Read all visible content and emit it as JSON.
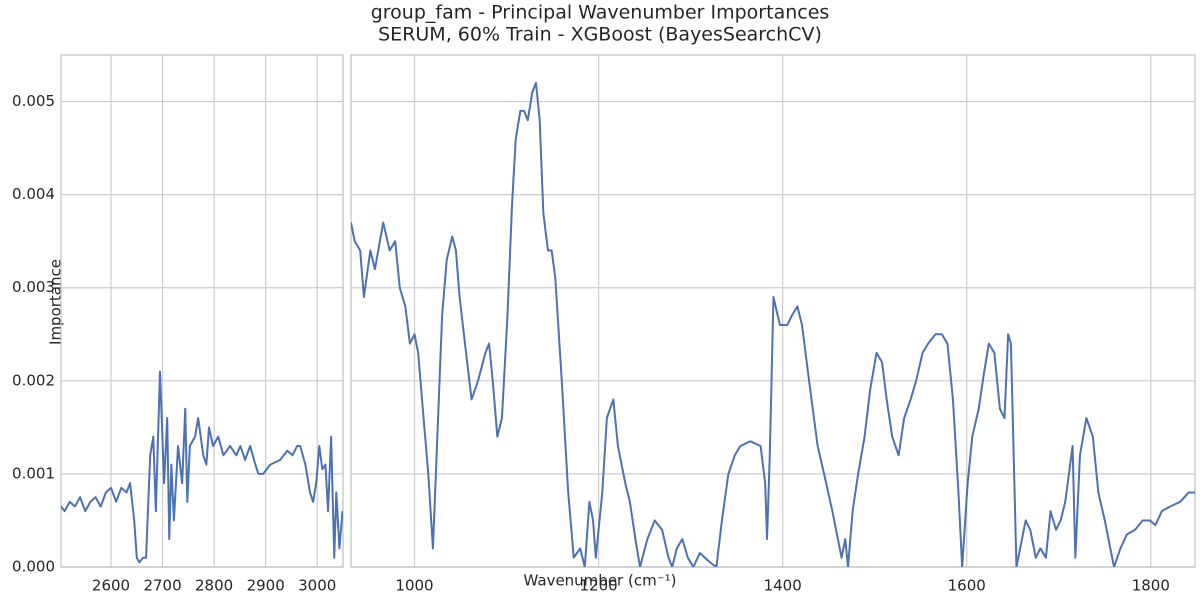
{
  "chart_data": [
    {
      "type": "line",
      "title": "group_fam - Principal Wavenumber Importances",
      "subtitle": "SERUM, 60% Train - XGBoost (BayesSearchCV)",
      "xlabel": "Wavenumber (cm⁻¹)",
      "ylabel": "Importance",
      "grid": true,
      "xlim": [
        2503,
        3050
      ],
      "xticks": [
        2600,
        2700,
        2800,
        2900,
        3000
      ],
      "ylim": [
        0,
        0.0055
      ],
      "yticks": [
        {
          "value": 0,
          "label": "0.000"
        },
        {
          "value": 0.001,
          "label": "0.001"
        },
        {
          "value": 0.002,
          "label": "0.002"
        },
        {
          "value": 0.003,
          "label": "0.003"
        },
        {
          "value": 0.004,
          "label": "0.004"
        },
        {
          "value": 0.005,
          "label": "0.005"
        }
      ],
      "x": [
        2503,
        2510,
        2520,
        2530,
        2540,
        2550,
        2560,
        2570,
        2580,
        2590,
        2600,
        2610,
        2620,
        2630,
        2637,
        2645,
        2650,
        2655,
        2662,
        2668,
        2676,
        2682,
        2687,
        2695,
        2703,
        2709,
        2713,
        2717,
        2722,
        2730,
        2738,
        2744,
        2748,
        2753,
        2763,
        2769,
        2779,
        2785,
        2790,
        2798,
        2808,
        2818,
        2831,
        2843,
        2851,
        2860,
        2870,
        2880,
        2886,
        2895,
        2909,
        2928,
        2942,
        2952,
        2961,
        2967,
        2977,
        2986,
        2992,
        2998,
        3004,
        3010,
        3016,
        3021,
        3027,
        3033,
        3037,
        3043,
        3049
      ],
      "series": [
        {
          "color": "#4c72b0",
          "values": [
            0.00065,
            0.0006,
            0.0007,
            0.00065,
            0.00075,
            0.0006,
            0.0007,
            0.00075,
            0.00065,
            0.0008,
            0.00085,
            0.0007,
            0.00085,
            0.0008,
            0.0009,
            0.0005,
            0.0001,
            5e-05,
            0.0001,
            0.0001,
            0.0012,
            0.0014,
            0.0006,
            0.0021,
            0.0009,
            0.0016,
            0.0003,
            0.0011,
            0.0005,
            0.0013,
            0.0009,
            0.0017,
            0.0007,
            0.0013,
            0.0014,
            0.0016,
            0.0012,
            0.0011,
            0.0015,
            0.0013,
            0.0014,
            0.0012,
            0.0013,
            0.0012,
            0.0013,
            0.00115,
            0.0013,
            0.0011,
            0.001,
            0.001,
            0.0011,
            0.00115,
            0.00125,
            0.0012,
            0.0013,
            0.0013,
            0.0011,
            0.0008,
            0.0007,
            0.0009,
            0.0013,
            0.00105,
            0.0011,
            0.0006,
            0.0014,
            0.0001,
            0.0008,
            0.0002,
            0.0006
          ]
        }
      ]
    },
    {
      "type": "line",
      "grid": true,
      "xlim": [
        931,
        1848
      ],
      "xticks": [
        1000,
        1200,
        1400,
        1600,
        1800
      ],
      "ylim": [
        0,
        0.0055
      ],
      "x": [
        931,
        935,
        941,
        945,
        952,
        957,
        966,
        973,
        979,
        984,
        990,
        995,
        1000,
        1004,
        1009,
        1015,
        1020,
        1024,
        1030,
        1035,
        1041,
        1045,
        1049,
        1056,
        1062,
        1069,
        1077,
        1081,
        1085,
        1090,
        1095,
        1101,
        1106,
        1110,
        1115,
        1119,
        1123,
        1128,
        1132,
        1136,
        1140,
        1145,
        1149,
        1153,
        1160,
        1167,
        1173,
        1180,
        1185,
        1190,
        1194,
        1197,
        1204,
        1209,
        1216,
        1221,
        1229,
        1234,
        1240,
        1245,
        1253,
        1261,
        1269,
        1276,
        1280,
        1285,
        1291,
        1297,
        1303,
        1310,
        1321,
        1328,
        1334,
        1341,
        1348,
        1354,
        1365,
        1376,
        1381,
        1383,
        1386,
        1390,
        1397,
        1405,
        1410,
        1416,
        1421,
        1430,
        1438,
        1445,
        1454,
        1460,
        1464,
        1468,
        1471,
        1476,
        1482,
        1489,
        1495,
        1502,
        1508,
        1513,
        1519,
        1526,
        1532,
        1539,
        1545,
        1552,
        1558,
        1566,
        1573,
        1579,
        1585,
        1591,
        1595,
        1601,
        1606,
        1613,
        1619,
        1624,
        1630,
        1636,
        1641,
        1645,
        1648,
        1654,
        1658,
        1664,
        1669,
        1675,
        1680,
        1686,
        1691,
        1697,
        1702,
        1707,
        1715,
        1718,
        1723,
        1730,
        1737,
        1743,
        1750,
        1756,
        1760,
        1767,
        1774,
        1783,
        1791,
        1799,
        1805,
        1812,
        1821,
        1832,
        1841,
        1848
      ],
      "series": [
        {
          "color": "#4c72b0",
          "values": [
            0.0037,
            0.0035,
            0.0034,
            0.0029,
            0.0034,
            0.0032,
            0.0037,
            0.0034,
            0.0035,
            0.003,
            0.0028,
            0.0024,
            0.0025,
            0.0023,
            0.0017,
            0.001,
            0.0002,
            0.0012,
            0.0027,
            0.0033,
            0.00355,
            0.0034,
            0.0029,
            0.0023,
            0.0018,
            0.002,
            0.0023,
            0.0024,
            0.002,
            0.0014,
            0.0016,
            0.0027,
            0.0039,
            0.0046,
            0.0049,
            0.0049,
            0.0048,
            0.0051,
            0.0052,
            0.0048,
            0.0038,
            0.0034,
            0.0034,
            0.0031,
            0.002,
            0.0008,
            0.0001,
            0.0002,
            0.0,
            0.0007,
            0.0005,
            0.0001,
            0.0008,
            0.0016,
            0.0018,
            0.0013,
            0.0009,
            0.0007,
            0.0003,
            0.0,
            0.0003,
            0.0005,
            0.0004,
            0.0001,
            0.0,
            0.0002,
            0.0003,
            0.0001,
            0.0,
            0.00015,
            5e-05,
            0.0,
            0.0005,
            0.001,
            0.0012,
            0.0013,
            0.00135,
            0.0013,
            0.0009,
            0.0003,
            0.0012,
            0.0029,
            0.0026,
            0.0026,
            0.0027,
            0.0028,
            0.0026,
            0.0019,
            0.0013,
            0.001,
            0.0006,
            0.0003,
            0.0001,
            0.0003,
            0.0,
            0.0006,
            0.001,
            0.0014,
            0.0019,
            0.0023,
            0.0022,
            0.0018,
            0.0014,
            0.0012,
            0.0016,
            0.0018,
            0.002,
            0.0023,
            0.0024,
            0.0025,
            0.0025,
            0.0024,
            0.0018,
            0.0008,
            0.0,
            0.0009,
            0.0014,
            0.0017,
            0.0021,
            0.0024,
            0.0023,
            0.0017,
            0.0016,
            0.0025,
            0.0024,
            0.0,
            0.0002,
            0.0005,
            0.0004,
            0.0001,
            0.0002,
            0.0001,
            0.0006,
            0.0004,
            0.0005,
            0.0007,
            0.0013,
            0.0001,
            0.0012,
            0.0016,
            0.0014,
            0.0008,
            0.0005,
            0.0002,
            0.0,
            0.0002,
            0.00035,
            0.0004,
            0.0005,
            0.0005,
            0.00045,
            0.0006,
            0.00065,
            0.0007,
            0.0008,
            0.0008
          ]
        }
      ]
    }
  ]
}
